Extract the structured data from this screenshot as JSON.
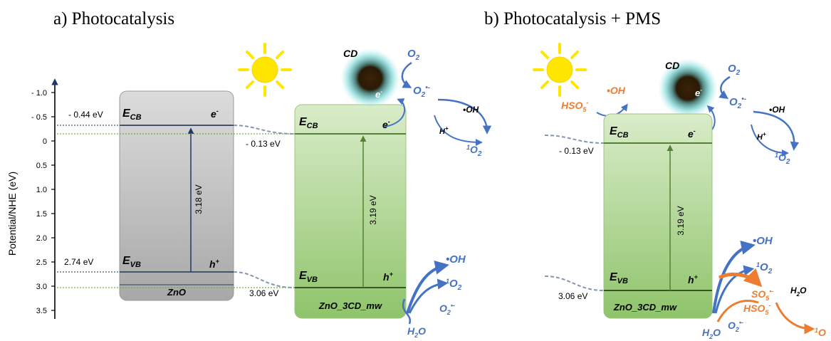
{
  "panels": {
    "a_title": "a)   Photocatalysis",
    "b_title": "b) Photocatalysis + PMS"
  },
  "axis": {
    "label": "Potential/NHE (eV)",
    "ticks": [
      "- 1.0",
      "- 0.5",
      "0",
      "0.5",
      "1.0",
      "1.5",
      "2.0",
      "2.5",
      "3.0",
      "3.5"
    ]
  },
  "zno": {
    "name": "ZnO",
    "ecb_value": "- 0.44 eV",
    "evb_value": "2.74 eV",
    "gap": "3.18 eV",
    "ecb_main": "E",
    "ecb_sub": "CB",
    "evb_main": "E",
    "evb_sub": "VB",
    "electron": "e",
    "electron_sup": "-",
    "hole": "h",
    "hole_sup": "+"
  },
  "composite_a": {
    "name": "ZnO_3CD_mw",
    "ecb_value": "- 0.13 eV",
    "evb_value": "3.06 eV",
    "gap": "3.19 eV"
  },
  "composite_b": {
    "name": "ZnO_3CD_mw",
    "ecb_value": "- 0.13 eV",
    "evb_value": "3.06 eV",
    "gap": "3.19 eV"
  },
  "species": {
    "cd": "CD",
    "o2": "O",
    "o2_sub": "2",
    "o2_radical_sup": "•-",
    "oh_radical": "•OH",
    "singlet_pre": "1",
    "h_plus": "H",
    "h_plus_sup": "+",
    "h2o_h": "H",
    "h2o_sub": "2",
    "h2o_o": "O",
    "hso5_main": "HSO",
    "hso5_sub": "5",
    "hso5_sup": "-",
    "so5_main": "SO",
    "so5_sub": "5",
    "so5_sup": "•-"
  },
  "colors": {
    "blue": "#4472c4",
    "orange": "#ed7d31",
    "gray_box": "#c8c8c8",
    "green_box": "#a9d18e",
    "green_line": "#548235"
  }
}
